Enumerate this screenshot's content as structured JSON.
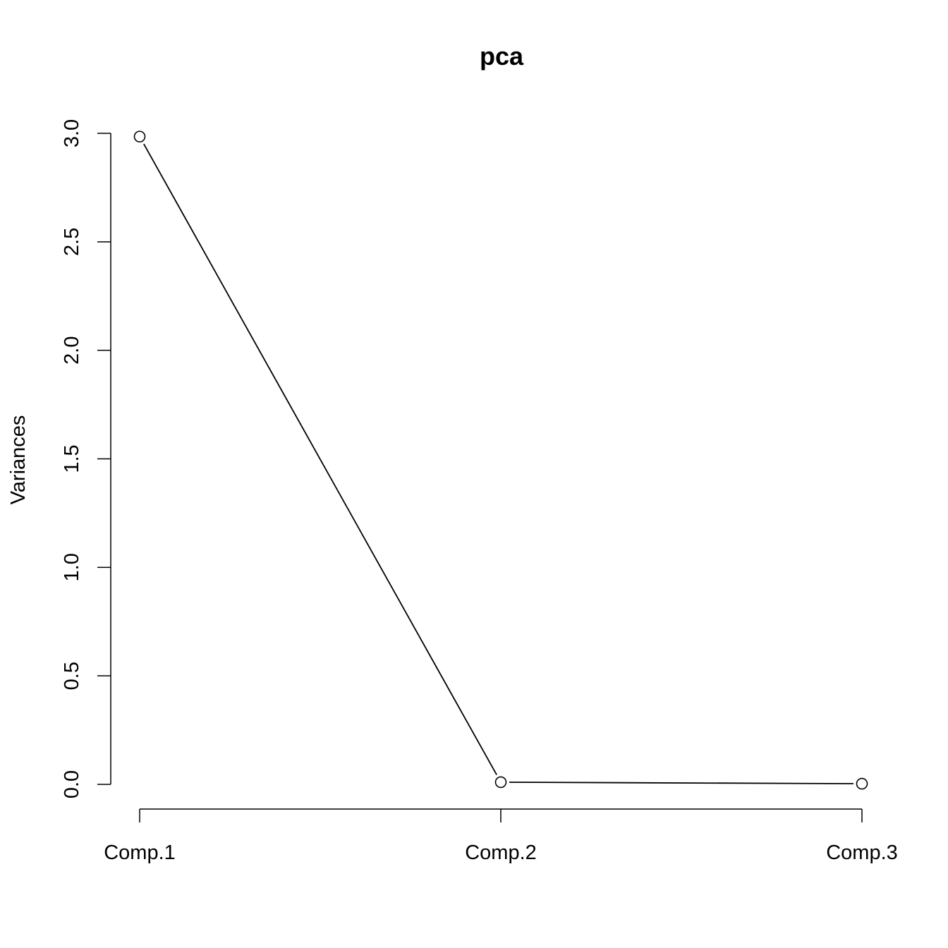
{
  "chart_data": {
    "type": "line",
    "title": "pca",
    "xlabel": "",
    "ylabel": "Variances",
    "categories": [
      "Comp.1",
      "Comp.2",
      "Comp.3"
    ],
    "values": [
      2.985,
      0.01,
      0.003
    ],
    "ylim": [
      0,
      3
    ],
    "yticks": [
      0,
      0.5,
      1,
      1.5,
      2,
      2.5,
      3
    ],
    "ytick_labels": [
      "0.0",
      "0.5",
      "1.0",
      "1.5",
      "2.0",
      "2.5",
      "3.0"
    ],
    "grid": false,
    "legend": "none",
    "markers": "open-circle",
    "line_color": "#000000"
  }
}
